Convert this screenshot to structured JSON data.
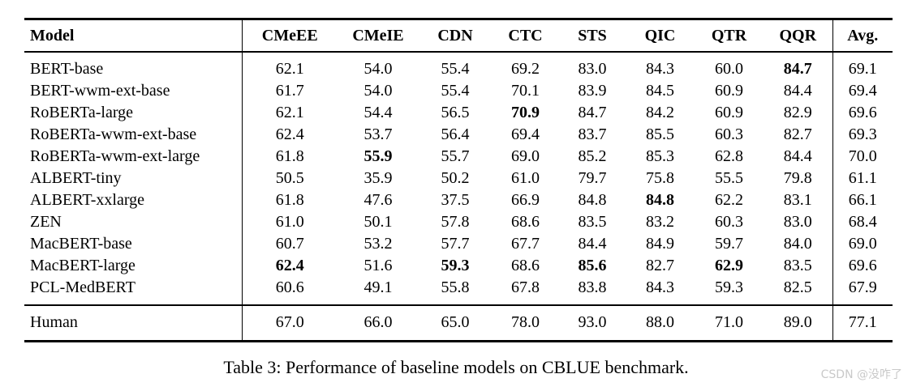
{
  "caption": "Table 3: Performance of baseline models on CBLUE benchmark.",
  "watermark": {
    "text": "CSDN @没咋了",
    "color": "#c9c9c9"
  },
  "chart_data": {
    "type": "table",
    "title": "Table 3: Performance of baseline models on CBLUE benchmark.",
    "columns": [
      "Model",
      "CMeEE",
      "CMeIE",
      "CDN",
      "CTC",
      "STS",
      "QIC",
      "QTR",
      "QQR",
      "Avg."
    ],
    "rows": [
      {
        "model": "BERT-base",
        "values": [
          "62.1",
          "54.0",
          "55.4",
          "69.2",
          "83.0",
          "84.3",
          "60.0",
          "84.7",
          "69.1"
        ],
        "bold": [
          7
        ]
      },
      {
        "model": "BERT-wwm-ext-base",
        "values": [
          "61.7",
          "54.0",
          "55.4",
          "70.1",
          "83.9",
          "84.5",
          "60.9",
          "84.4",
          "69.4"
        ],
        "bold": []
      },
      {
        "model": "RoBERTa-large",
        "values": [
          "62.1",
          "54.4",
          "56.5",
          "70.9",
          "84.7",
          "84.2",
          "60.9",
          "82.9",
          "69.6"
        ],
        "bold": [
          3
        ]
      },
      {
        "model": "RoBERTa-wwm-ext-base",
        "values": [
          "62.4",
          "53.7",
          "56.4",
          "69.4",
          "83.7",
          "85.5",
          "60.3",
          "82.7",
          "69.3"
        ],
        "bold": []
      },
      {
        "model": "RoBERTa-wwm-ext-large",
        "values": [
          "61.8",
          "55.9",
          "55.7",
          "69.0",
          "85.2",
          "85.3",
          "62.8",
          "84.4",
          "70.0"
        ],
        "bold": [
          1
        ]
      },
      {
        "model": "ALBERT-tiny",
        "values": [
          "50.5",
          "35.9",
          "50.2",
          "61.0",
          "79.7",
          "75.8",
          "55.5",
          "79.8",
          "61.1"
        ],
        "bold": []
      },
      {
        "model": "ALBERT-xxlarge",
        "values": [
          "61.8",
          "47.6",
          "37.5",
          "66.9",
          "84.8",
          "84.8",
          "62.2",
          "83.1",
          "66.1"
        ],
        "bold": [
          5
        ]
      },
      {
        "model": "ZEN",
        "values": [
          "61.0",
          "50.1",
          "57.8",
          "68.6",
          "83.5",
          "83.2",
          "60.3",
          "83.0",
          "68.4"
        ],
        "bold": []
      },
      {
        "model": "MacBERT-base",
        "values": [
          "60.7",
          "53.2",
          "57.7",
          "67.7",
          "84.4",
          "84.9",
          "59.7",
          "84.0",
          "69.0"
        ],
        "bold": []
      },
      {
        "model": "MacBERT-large",
        "values": [
          "62.4",
          "51.6",
          "59.3",
          "68.6",
          "85.6",
          "82.7",
          "62.9",
          "83.5",
          "69.6"
        ],
        "bold": [
          0,
          2,
          4,
          6
        ]
      },
      {
        "model": "PCL-MedBERT",
        "values": [
          "60.6",
          "49.1",
          "55.8",
          "67.8",
          "83.8",
          "84.3",
          "59.3",
          "82.5",
          "67.9"
        ],
        "bold": []
      }
    ],
    "footer": {
      "model": "Human",
      "values": [
        "67.0",
        "66.0",
        "65.0",
        "78.0",
        "93.0",
        "88.0",
        "71.0",
        "89.0",
        "77.1"
      ],
      "bold": []
    }
  }
}
